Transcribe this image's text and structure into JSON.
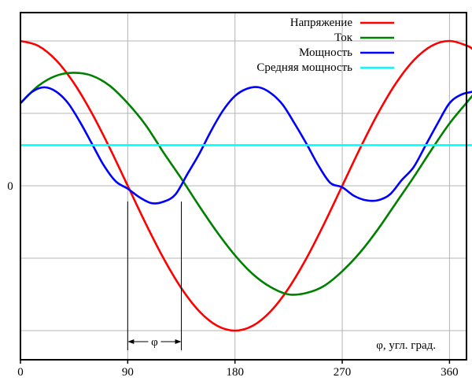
{
  "chart_data": {
    "type": "line",
    "title": "",
    "xlabel": "φ, угл. град.",
    "ylabel": "",
    "xlim": [
      0,
      380
    ],
    "ylim": [
      -1.1,
      1.0
    ],
    "x_ticks": [
      "0",
      "90",
      "180",
      "270",
      "360"
    ],
    "x_tick_values": [
      0,
      90,
      180,
      270,
      360
    ],
    "y_ticks": [
      "0"
    ],
    "y_tick_values": [
      0
    ],
    "grid": true,
    "legend_position": "top-right",
    "phase_label": "φ",
    "phase_interval": [
      90,
      135
    ],
    "series": [
      {
        "name": "Напряжение",
        "color": "#ff0000",
        "x": [
          0,
          15,
          30,
          45,
          60,
          75,
          90,
          105,
          120,
          135,
          150,
          165,
          180,
          195,
          210,
          225,
          240,
          255,
          270,
          285,
          300,
          315,
          330,
          345,
          360,
          375,
          380
        ],
        "y": [
          1.0,
          0.966,
          0.866,
          0.707,
          0.5,
          0.259,
          0.0,
          -0.259,
          -0.5,
          -0.707,
          -0.866,
          -0.966,
          -1.0,
          -0.966,
          -0.866,
          -0.707,
          -0.5,
          -0.259,
          0.0,
          0.259,
          0.5,
          0.707,
          0.866,
          0.966,
          1.0,
          0.966,
          0.94
        ]
      },
      {
        "name": "Ток",
        "color": "#008000",
        "x": [
          0,
          15,
          30,
          45,
          60,
          75,
          90,
          105,
          120,
          135,
          150,
          165,
          180,
          195,
          210,
          225,
          240,
          255,
          270,
          285,
          300,
          315,
          330,
          345,
          360,
          375,
          380
        ],
        "y": [
          0.57,
          0.69,
          0.76,
          0.78,
          0.76,
          0.69,
          0.57,
          0.42,
          0.23,
          0.05,
          -0.14,
          -0.32,
          -0.48,
          -0.61,
          -0.7,
          -0.75,
          -0.74,
          -0.69,
          -0.59,
          -0.46,
          -0.3,
          -0.12,
          0.06,
          0.25,
          0.43,
          0.58,
          0.63
        ]
      },
      {
        "name": "Мощность",
        "color": "#0000ff",
        "x": [
          0,
          10,
          20,
          30,
          40,
          50,
          60,
          70,
          80,
          90,
          100,
          110,
          120,
          130,
          140,
          150,
          160,
          170,
          180,
          190,
          200,
          210,
          220,
          230,
          240,
          250,
          260,
          270,
          280,
          290,
          300,
          310,
          320,
          330,
          340,
          350,
          360,
          370,
          380
        ],
        "y": [
          0.57,
          0.65,
          0.68,
          0.65,
          0.57,
          0.44,
          0.29,
          0.14,
          0.03,
          -0.02,
          -0.08,
          -0.12,
          -0.11,
          -0.06,
          0.08,
          0.22,
          0.38,
          0.52,
          0.62,
          0.67,
          0.68,
          0.64,
          0.56,
          0.43,
          0.29,
          0.14,
          0.02,
          -0.01,
          -0.07,
          -0.1,
          -0.1,
          -0.06,
          0.04,
          0.13,
          0.28,
          0.43,
          0.57,
          0.63,
          0.65
        ]
      },
      {
        "name": "Средняя мощность",
        "color": "#00ffff",
        "x": [
          0,
          380
        ],
        "y": [
          0.28,
          0.28
        ]
      }
    ]
  }
}
